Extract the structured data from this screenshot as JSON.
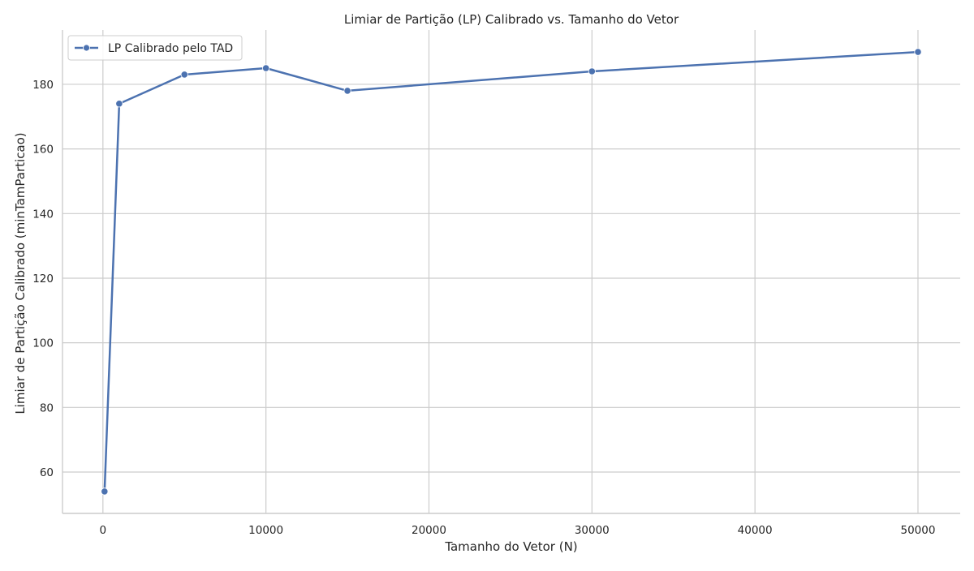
{
  "chart_data": {
    "type": "line",
    "title": "Limiar de Partição (LP) Calibrado vs. Tamanho do Vetor",
    "xlabel": "Tamanho do Vetor (N)",
    "ylabel": "Limiar de Partição Calibrado (minTamParticao)",
    "xlim": [
      -2480,
      52590
    ],
    "ylim": [
      47.2,
      196.8
    ],
    "x_ticks": [
      0,
      10000,
      20000,
      30000,
      40000,
      50000
    ],
    "y_ticks": [
      60,
      80,
      100,
      120,
      140,
      160,
      180
    ],
    "grid": true,
    "legend_position": "top-left",
    "series": [
      {
        "name": "LP Calibrado pelo TAD",
        "color": "#4c72b0",
        "marker": "circle",
        "x": [
          100,
          1000,
          5000,
          10000,
          15000,
          30000,
          50000
        ],
        "y": [
          54,
          174,
          183,
          185,
          178,
          184,
          190
        ]
      }
    ]
  }
}
